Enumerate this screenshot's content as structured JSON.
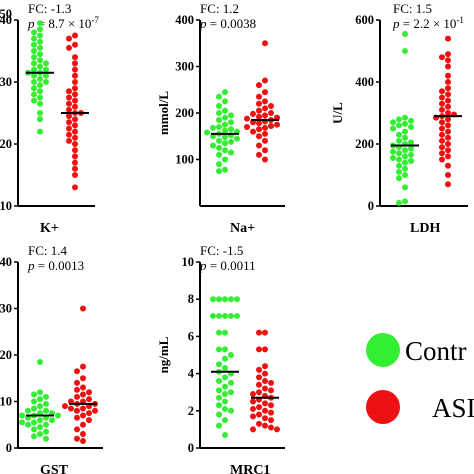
{
  "colors": {
    "control": "#33ee33",
    "asd": "#ee1111"
  },
  "legend": {
    "control_label": "Contr",
    "asd_label": "ASI"
  },
  "chart_data": [
    {
      "type": "scatter",
      "xlabel": "K+",
      "ylabel": "",
      "fc_text": "FC: -1.3",
      "p_text": "= 8.7 × 10",
      "p_exp": "-7",
      "ylim": [
        10,
        40
      ],
      "yticks": [
        "10",
        "20",
        "30",
        "40"
      ],
      "top_tick_partial": "50",
      "medians": [
        31.5,
        25
      ],
      "groups": [
        {
          "name": "Control",
          "values": [
            39.5,
            38.5,
            38,
            37.5,
            37,
            36.5,
            36,
            35.5,
            35,
            34.5,
            34,
            33.5,
            33,
            33,
            32.5,
            32,
            32,
            31.5,
            31.5,
            31,
            31,
            30.5,
            30,
            30,
            29.5,
            29,
            28.5,
            28,
            27.5,
            27,
            26.5,
            25,
            24,
            22
          ]
        },
        {
          "name": "ASD",
          "values": [
            37.5,
            37,
            36,
            35.5,
            34,
            33,
            32,
            31,
            30,
            29,
            28.5,
            28,
            27.5,
            27,
            26.5,
            26,
            25.5,
            25,
            25,
            24.5,
            24,
            23.5,
            23,
            22.5,
            22,
            21.5,
            21,
            20.5,
            20,
            19,
            18,
            17,
            16,
            15,
            13
          ]
        }
      ]
    },
    {
      "type": "scatter",
      "xlabel": "Na+",
      "ylabel": "mmol/L",
      "fc_text": "FC: 1.2",
      "p_text": "= 0.0038",
      "p_exp": "",
      "ylim": [
        0,
        400
      ],
      "yticks": [
        "100",
        "200",
        "300",
        "400"
      ],
      "medians": [
        155,
        185
      ],
      "groups": [
        {
          "name": "Control",
          "values": [
            245,
            235,
            225,
            215,
            205,
            200,
            195,
            190,
            185,
            180,
            175,
            170,
            168,
            165,
            162,
            160,
            158,
            155,
            152,
            150,
            148,
            145,
            140,
            138,
            135,
            130,
            125,
            120,
            115,
            110,
            100,
            90,
            78,
            75
          ]
        },
        {
          "name": "ASD",
          "values": [
            350,
            270,
            260,
            245,
            235,
            225,
            220,
            215,
            210,
            205,
            200,
            198,
            195,
            192,
            190,
            188,
            185,
            182,
            180,
            178,
            175,
            172,
            170,
            168,
            165,
            160,
            155,
            150,
            140,
            130,
            120,
            110,
            100
          ]
        }
      ]
    },
    {
      "type": "scatter",
      "xlabel": "LDH",
      "ylabel": "U/L",
      "fc_text": "FC: 1.5",
      "p_text": "= 2.2 × 10",
      "p_exp": "-1",
      "ylim": [
        0,
        600
      ],
      "yticks": [
        "0",
        "200",
        "400",
        "600"
      ],
      "medians": [
        195,
        290
      ],
      "groups": [
        {
          "name": "Control",
          "values": [
            555,
            500,
            285,
            280,
            275,
            270,
            265,
            260,
            255,
            250,
            240,
            230,
            220,
            210,
            205,
            200,
            195,
            190,
            185,
            180,
            175,
            170,
            165,
            160,
            155,
            150,
            145,
            140,
            130,
            120,
            110,
            100,
            90,
            60,
            15,
            10
          ]
        },
        {
          "name": "ASD",
          "values": [
            540,
            490,
            480,
            470,
            450,
            420,
            400,
            380,
            370,
            360,
            350,
            340,
            330,
            320,
            310,
            300,
            295,
            290,
            285,
            280,
            270,
            260,
            250,
            240,
            230,
            220,
            210,
            200,
            190,
            180,
            170,
            160,
            150,
            130,
            100,
            70
          ]
        }
      ]
    },
    {
      "type": "scatter",
      "xlabel": "GST",
      "ylabel": "",
      "fc_text": "FC: 1.4",
      "p_text": "= 0.0013",
      "p_exp": "",
      "ylim": [
        0,
        40
      ],
      "yticks": [
        "0",
        "10",
        "20",
        "30",
        "40"
      ],
      "medians": [
        7,
        9.5
      ],
      "groups": [
        {
          "name": "Control",
          "values": [
            18.5,
            12,
            11.5,
            11,
            10.5,
            10,
            9.5,
            9,
            8.5,
            8,
            8,
            7.5,
            7.5,
            7,
            7,
            7,
            6.5,
            6.5,
            6,
            6,
            5.5,
            5.5,
            5,
            5,
            4.5,
            4,
            3.5,
            3,
            2.5,
            2
          ]
        },
        {
          "name": "ASD",
          "values": [
            30,
            17.5,
            16.5,
            15,
            14,
            13,
            12.5,
            12,
            11.5,
            11,
            10.5,
            10,
            10,
            9.5,
            9.5,
            9,
            9,
            8.5,
            8.5,
            8,
            8,
            7.5,
            7,
            6.5,
            6,
            5,
            4,
            3,
            2,
            1.5
          ]
        }
      ]
    },
    {
      "type": "scatter",
      "xlabel": "MRC1",
      "ylabel": "ng/mL",
      "fc_text": "FC: -1.5",
      "p_text": "= 0.0011",
      "p_exp": "",
      "ylim": [
        0,
        10
      ],
      "yticks": [
        "0",
        "2",
        "4",
        "6",
        "8",
        "10"
      ],
      "medians": [
        4.1,
        2.7
      ],
      "groups": [
        {
          "name": "Control",
          "values": [
            8,
            8,
            8,
            8,
            8,
            7.1,
            7.1,
            7.1,
            7.1,
            7.1,
            6.2,
            6.2,
            5.3,
            5.3,
            5,
            4.8,
            4.5,
            4.3,
            4.1,
            4,
            3.8,
            3.6,
            3.5,
            3.3,
            3.1,
            3,
            2.9,
            2.7,
            2.5,
            2.3,
            2.1,
            2,
            1.8,
            1.5,
            1.2,
            0.7
          ]
        },
        {
          "name": "ASD",
          "values": [
            6.2,
            6.2,
            5.3,
            5.3,
            4.4,
            4.2,
            4,
            3.8,
            3.6,
            3.5,
            3.4,
            3.2,
            3.1,
            3,
            2.9,
            2.8,
            2.7,
            2.6,
            2.5,
            2.4,
            2.3,
            2.2,
            2.1,
            2,
            1.9,
            1.8,
            1.7,
            1.6,
            1.5,
            1.3,
            1.2,
            1.1,
            1,
            1
          ]
        }
      ]
    }
  ]
}
